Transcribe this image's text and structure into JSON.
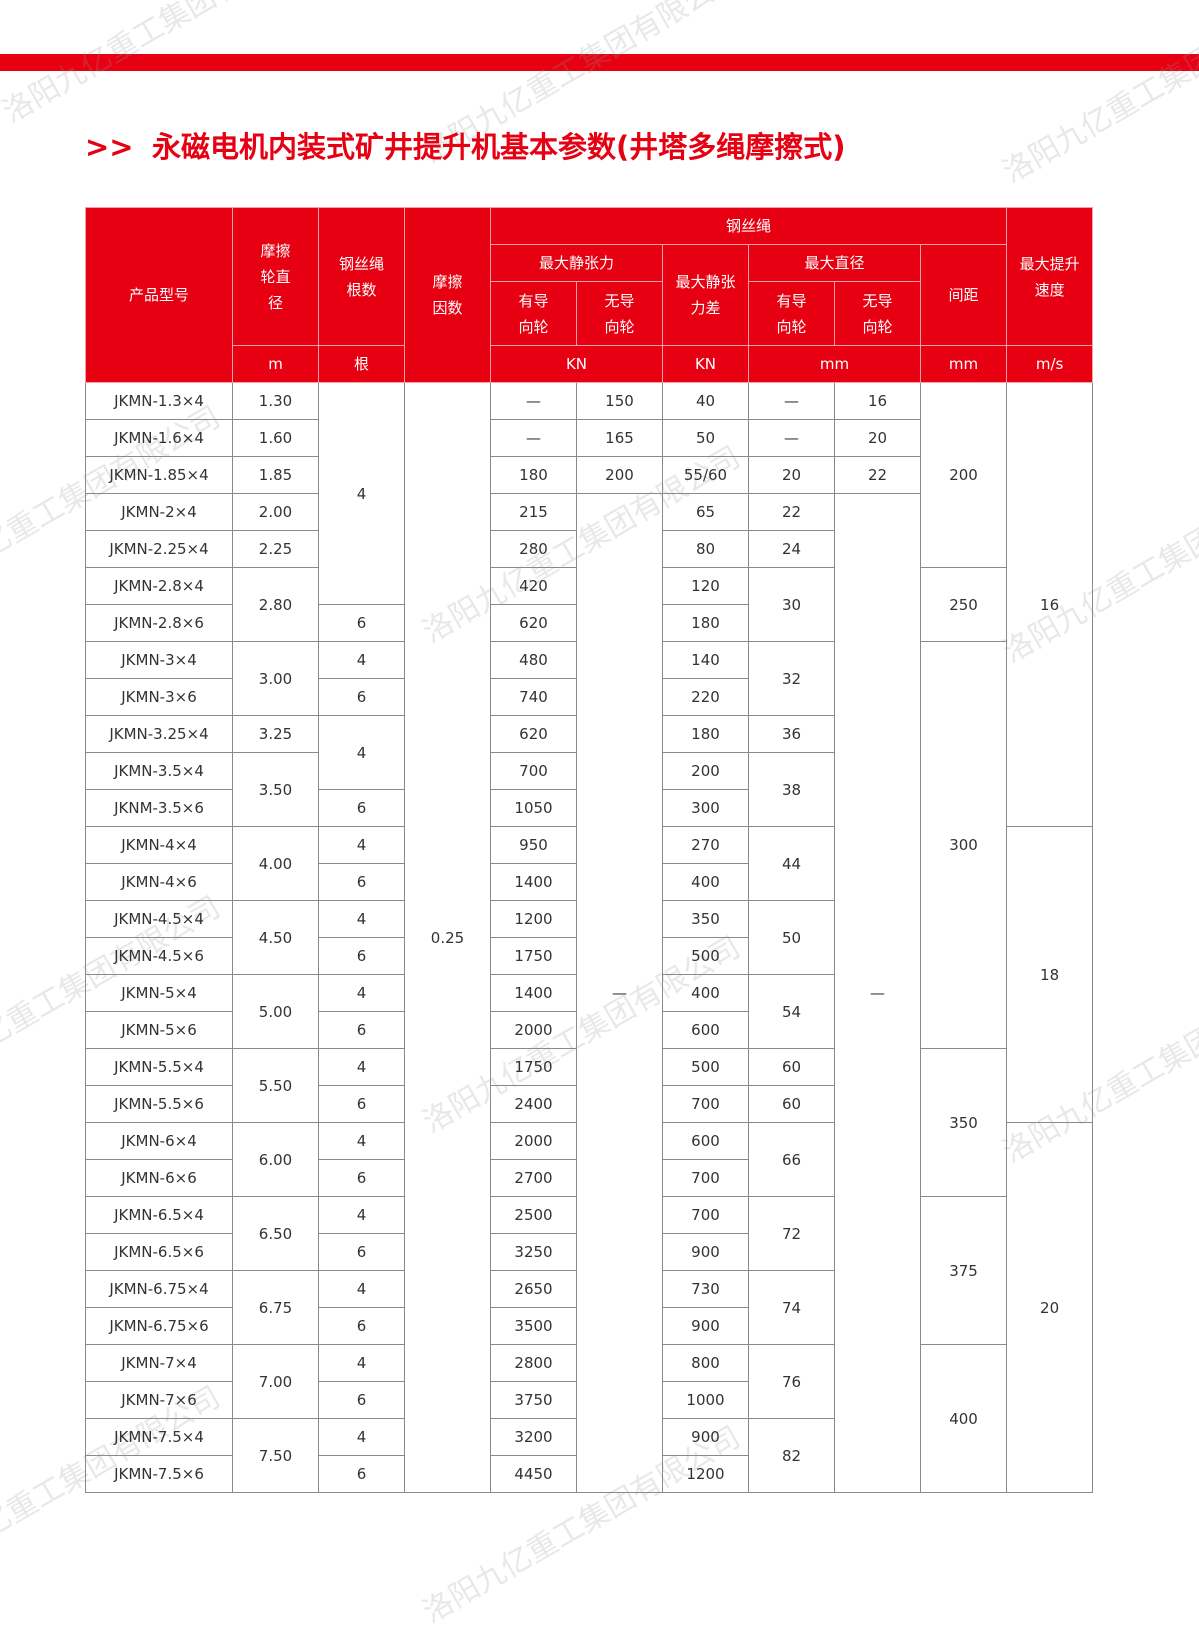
{
  "title": {
    "arrows": ">>",
    "text": "永磁电机内装式矿井提升机基本参数(井塔多绳摩擦式)"
  },
  "watermark": "洛阳九亿重工集团有限公司",
  "colors": {
    "accent": "#e60012",
    "border": "#8a8a8a",
    "text": "#333333"
  },
  "header": {
    "model": "产品型号",
    "wheel_diameter": "摩擦轮直径",
    "rope_count": "钢丝绳根数",
    "friction_coef": "摩擦因数",
    "wire_rope": "钢丝绳",
    "max_static_tension": "最大静张力",
    "guided": "有导向轮",
    "unguided": "无导向轮",
    "max_static_tension_diff": "最大静张力差",
    "max_diameter": "最大直径",
    "guided2": "有导向轮",
    "unguided2": "无导向轮",
    "spacing": "间距",
    "max_speed": "最大提升速度",
    "units": {
      "diameter": "m",
      "ropes": "根",
      "tension": "KN",
      "diff": "KN",
      "rope_dia": "mm",
      "spacing": "mm",
      "speed": "m/s"
    }
  },
  "rows": [
    [
      "JKMN-1.3×4",
      "1.30",
      "4",
      "0.25",
      "—",
      "150",
      "40",
      "—",
      "16",
      "200",
      "16"
    ],
    [
      "JKMN-1.6×4",
      "1.60",
      null,
      null,
      "—",
      "165",
      "50",
      "—",
      "20",
      null,
      null
    ],
    [
      "JKMN-1.85×4",
      "1.85",
      null,
      null,
      "180",
      "200",
      "55/60",
      "20",
      "22",
      null,
      null
    ],
    [
      "JKMN-2×4",
      "2.00",
      null,
      null,
      "215",
      "—",
      "65",
      "22",
      "—",
      null,
      null
    ],
    [
      "JKMN-2.25×4",
      "2.25",
      null,
      null,
      "280",
      null,
      "80",
      "24",
      null,
      null,
      null
    ],
    [
      "JKMN-2.8×4",
      "2.80",
      null,
      null,
      "420",
      null,
      "120",
      "30",
      null,
      "250",
      null
    ],
    [
      "JKMN-2.8×6",
      null,
      "6",
      null,
      "620",
      null,
      "180",
      null,
      null,
      null,
      null
    ],
    [
      "JKMN-3×4",
      "3.00",
      "4",
      null,
      "480",
      null,
      "140",
      "32",
      null,
      "300",
      null
    ],
    [
      "JKMN-3×6",
      null,
      "6",
      null,
      "740",
      null,
      "220",
      null,
      null,
      null,
      null
    ],
    [
      "JKMN-3.25×4",
      "3.25",
      "4",
      null,
      "620",
      null,
      "180",
      "36",
      null,
      null,
      null
    ],
    [
      "JKMN-3.5×4",
      "3.50",
      null,
      null,
      "700",
      null,
      "200",
      "38",
      null,
      null,
      null
    ],
    [
      "JKNM-3.5×6",
      null,
      "6",
      null,
      "1050",
      null,
      "300",
      null,
      null,
      null,
      null
    ],
    [
      "JKMN-4×4",
      "4.00",
      "4",
      null,
      "950",
      null,
      "270",
      "44",
      null,
      null,
      "18"
    ],
    [
      "JKMN-4×6",
      null,
      "6",
      null,
      "1400",
      null,
      "400",
      null,
      null,
      null,
      null
    ],
    [
      "JKMN-4.5×4",
      "4.50",
      "4",
      null,
      "1200",
      null,
      "350",
      "50",
      null,
      null,
      null
    ],
    [
      "JKMN-4.5×6",
      null,
      "6",
      null,
      "1750",
      null,
      "500",
      null,
      null,
      null,
      null
    ],
    [
      "JKMN-5×4",
      "5.00",
      "4",
      null,
      "1400",
      null,
      "400",
      "54",
      null,
      null,
      null
    ],
    [
      "JKMN-5×6",
      null,
      "6",
      null,
      "2000",
      null,
      "600",
      null,
      null,
      null,
      null
    ],
    [
      "JKMN-5.5×4",
      "5.50",
      "4",
      null,
      "1750",
      null,
      "500",
      "60",
      null,
      "350",
      null
    ],
    [
      "JKMN-5.5×6",
      null,
      "6",
      null,
      "2400",
      null,
      "700",
      "60",
      null,
      null,
      null
    ],
    [
      "JKMN-6×4",
      "6.00",
      "4",
      null,
      "2000",
      null,
      "600",
      "66",
      null,
      null,
      "20"
    ],
    [
      "JKMN-6×6",
      null,
      "6",
      null,
      "2700",
      null,
      "700",
      null,
      null,
      null,
      null
    ],
    [
      "JKMN-6.5×4",
      "6.50",
      "4",
      null,
      "2500",
      null,
      "700",
      "72",
      null,
      "375",
      null
    ],
    [
      "JKMN-6.5×6",
      null,
      "6",
      null,
      "3250",
      null,
      "900",
      null,
      null,
      null,
      null
    ],
    [
      "JKMN-6.75×4",
      "6.75",
      "4",
      null,
      "2650",
      null,
      "730",
      "74",
      null,
      null,
      null
    ],
    [
      "JKMN-6.75×6",
      null,
      "6",
      null,
      "3500",
      null,
      "900",
      null,
      null,
      null,
      null
    ],
    [
      "JKMN-7×4",
      "7.00",
      "4",
      null,
      "2800",
      null,
      "800",
      "76",
      null,
      "400",
      null
    ],
    [
      "JKMN-7×6",
      null,
      "6",
      null,
      "3750",
      null,
      "1000",
      null,
      null,
      null,
      null
    ],
    [
      "JKMN-7.5×4",
      "7.50",
      "4",
      null,
      "3200",
      null,
      "900",
      "82",
      null,
      null,
      null
    ],
    [
      "JKMN-7.5×6",
      null,
      "6",
      null,
      "4450",
      null,
      "1200",
      null,
      null,
      null,
      null
    ]
  ]
}
